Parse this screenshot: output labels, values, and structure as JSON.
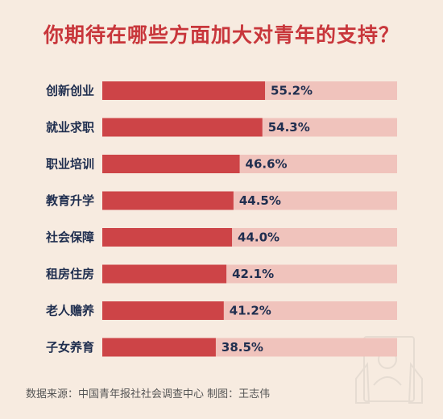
{
  "title": "你期待在哪些方面加大对青年的支持？",
  "source": "数据来源：中国青年报社社会调查中心   制图：王志伟",
  "colors": {
    "bar": "#cd4447",
    "track": "#f0c3bc",
    "title": "#c8363b",
    "label": "#1f2e4f",
    "background": "#f7ebe0"
  },
  "chart_data": {
    "type": "bar",
    "orientation": "horizontal",
    "title": "你期待在哪些方面加大对青年的支持？",
    "categories": [
      "创新创业",
      "就业求职",
      "职业培训",
      "教育升学",
      "社会保障",
      "租房住房",
      "老人赡养",
      "子女养育"
    ],
    "values": [
      55.2,
      54.3,
      46.6,
      44.5,
      44.0,
      42.1,
      41.2,
      38.5
    ],
    "value_labels": [
      "55.2%",
      "54.3%",
      "46.6%",
      "44.5%",
      "44.0%",
      "42.1%",
      "41.2%",
      "38.5%"
    ],
    "unit": "%",
    "xlim": [
      0,
      100
    ],
    "grid": false,
    "legend": "none"
  }
}
